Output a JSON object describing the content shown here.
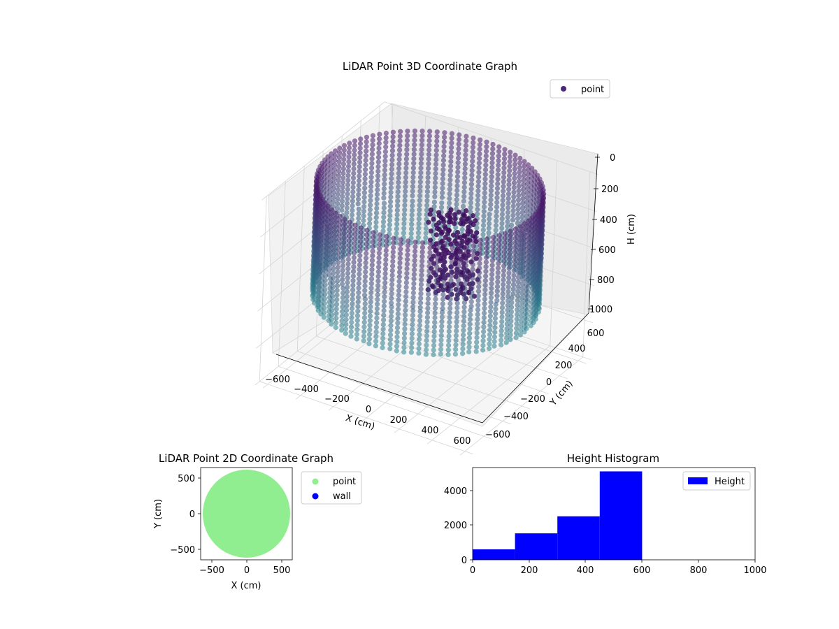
{
  "chart_data": [
    {
      "type": "scatter",
      "projection": "3d",
      "title": "LiDAR Point 3D Coordinate Graph",
      "xlabel": "X (cm)",
      "ylabel": "Y (cm)",
      "zlabel": "H (cm)",
      "xlim": [
        -650,
        650
      ],
      "ylim": [
        -650,
        650
      ],
      "zlim": [
        1000,
        0
      ],
      "z_inverted": true,
      "xticks": [
        "−600",
        "−400",
        "−200",
        "0",
        "200",
        "400",
        "600"
      ],
      "yticks": [
        "−600",
        "−400",
        "−200",
        "0",
        "200",
        "400",
        "600"
      ],
      "zticks": [
        "0",
        "200",
        "400",
        "600",
        "800",
        "1000"
      ],
      "grid": true,
      "legend": {
        "position": "top-right",
        "entries": [
          {
            "label": "point",
            "color": "#482878"
          }
        ]
      },
      "series": [
        {
          "name": "point",
          "shape": "cylindrical wall ring",
          "radius": 600,
          "height_range": [
            0,
            600
          ],
          "colormap": "viridis",
          "points_sample": [
            {
              "x": 600,
              "y": 0,
              "h": 100
            },
            {
              "x": 424,
              "y": 424,
              "h": 100
            },
            {
              "x": 0,
              "y": 600,
              "h": 100
            },
            {
              "x": -424,
              "y": 424,
              "h": 100
            },
            {
              "x": -600,
              "y": 0,
              "h": 100
            },
            {
              "x": -424,
              "y": -424,
              "h": 100
            },
            {
              "x": 0,
              "y": -600,
              "h": 100
            },
            {
              "x": 424,
              "y": -424,
              "h": 100
            },
            {
              "x": 600,
              "y": 0,
              "h": 500
            },
            {
              "x": 0,
              "y": 600,
              "h": 500
            },
            {
              "x": -600,
              "y": 0,
              "h": 500
            },
            {
              "x": 0,
              "y": -600,
              "h": 500
            }
          ]
        }
      ]
    },
    {
      "type": "scatter",
      "title": "LiDAR Point 2D Coordinate Graph",
      "xlabel": "X (cm)",
      "ylabel": "Y (cm)",
      "xlim": [
        -650,
        650
      ],
      "ylim": [
        -650,
        650
      ],
      "xticks": [
        "−500",
        "0",
        "500"
      ],
      "yticks": [
        "−500",
        "0",
        "500"
      ],
      "legend": {
        "position": "outside-right",
        "entries": [
          {
            "label": "point",
            "color": "#90ee90"
          },
          {
            "label": "wall",
            "color": "#0000ff"
          }
        ]
      },
      "series": [
        {
          "name": "point",
          "color": "#90ee90",
          "shape": "filled disk",
          "radius": 620
        },
        {
          "name": "wall",
          "color": "#0000ff",
          "values": []
        }
      ]
    },
    {
      "type": "bar",
      "subtype": "histogram",
      "title": "Height Histogram",
      "xlabel": "",
      "ylabel": "",
      "xlim": [
        0,
        1000
      ],
      "ylim": [
        0,
        5300
      ],
      "xticks": [
        "0",
        "200",
        "400",
        "600",
        "800",
        "1000"
      ],
      "yticks": [
        "0",
        "2000",
        "4000"
      ],
      "legend": {
        "position": "top-right",
        "entries": [
          {
            "label": "Height",
            "color": "#0000ff"
          }
        ]
      },
      "series": [
        {
          "name": "Height",
          "color": "#0000ff",
          "bins": [
            {
              "from": 0,
              "to": 150,
              "count": 600
            },
            {
              "from": 150,
              "to": 300,
              "count": 1520
            },
            {
              "from": 300,
              "to": 450,
              "count": 2500
            },
            {
              "from": 450,
              "to": 600,
              "count": 5080
            },
            {
              "from": 600,
              "to": 750,
              "count": 0
            },
            {
              "from": 750,
              "to": 900,
              "count": 0
            }
          ]
        }
      ]
    }
  ]
}
